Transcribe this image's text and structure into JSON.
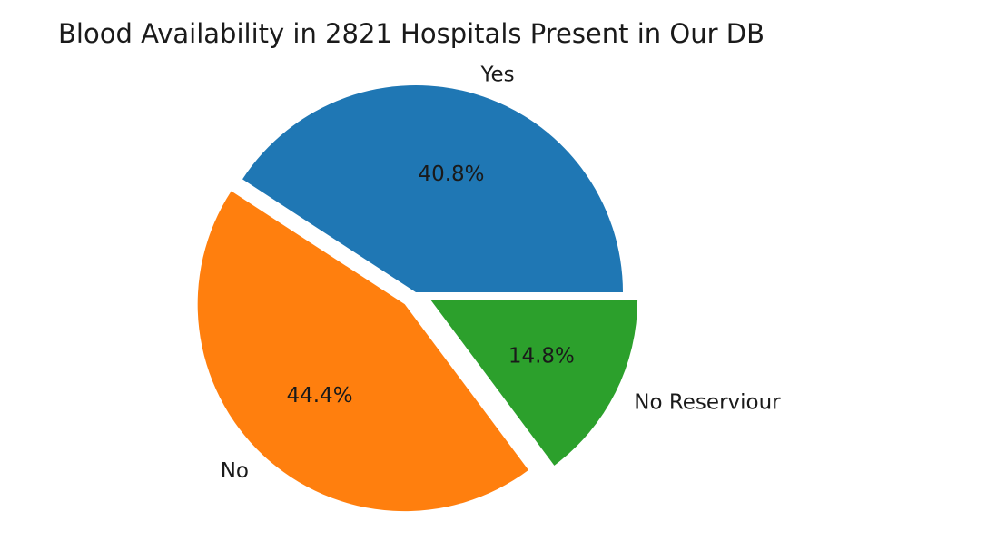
{
  "chart_data": {
    "type": "pie",
    "title": "Blood Availability in 2821 Hospitals Present in Our DB",
    "slices": [
      {
        "label": "Yes",
        "value": 40.8,
        "display": "40.8%",
        "color": "#1f77b4",
        "exploded": false
      },
      {
        "label": "No",
        "value": 44.4,
        "display": "44.4%",
        "color": "#ff7f0e",
        "exploded": true
      },
      {
        "label": "No Reserviour",
        "value": 14.8,
        "display": "14.8%",
        "color": "#2ca02c",
        "exploded": true
      }
    ],
    "start_angle": 0,
    "direction": "counterclockwise",
    "legend": "none"
  }
}
